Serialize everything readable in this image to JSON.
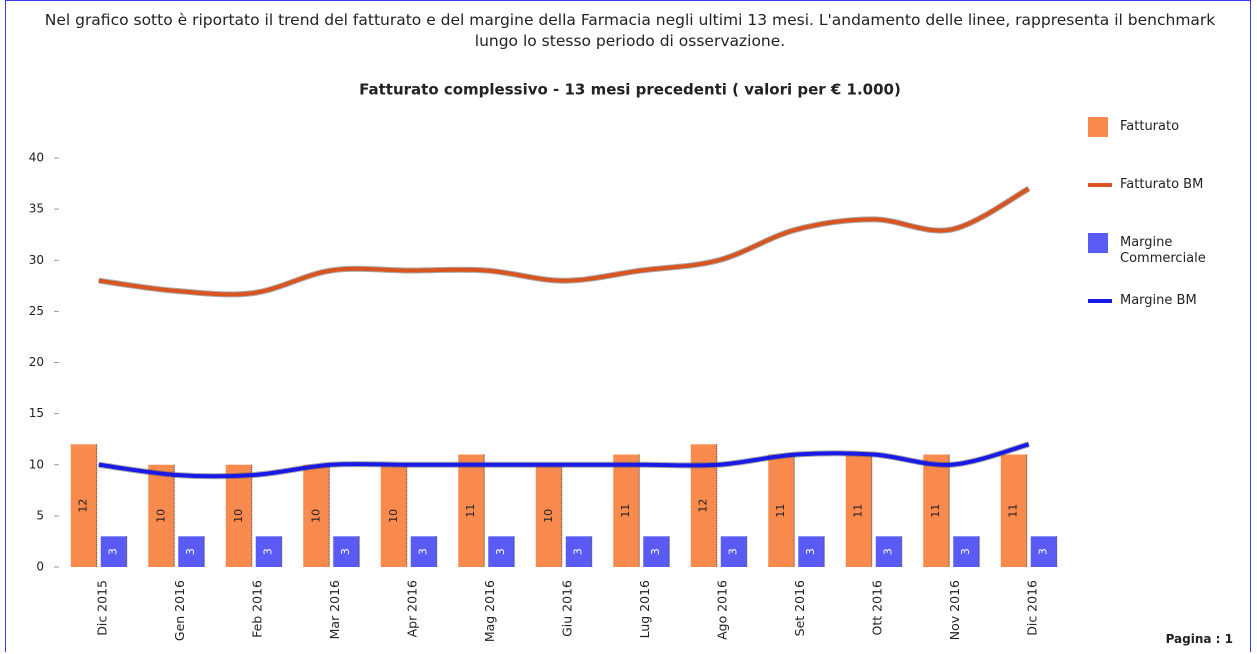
{
  "intro": "Nel grafico sotto è riportato il trend del fatturato e del margine della Farmacia negli ultimi 13 mesi. L'andamento delle linee, rappresenta il benchmark lungo lo stesso periodo di osservazione.",
  "footer": "Pagina : 1",
  "chart_data": {
    "type": "bar",
    "title": "Fatturato complessivo - 13 mesi precedenti ( valori per € 1.000)",
    "categories": [
      "Dic 2015",
      "Gen 2016",
      "Feb 2016",
      "Mar 2016",
      "Apr 2016",
      "Mag 2016",
      "Giu 2016",
      "Lug 2016",
      "Ago 2016",
      "Set 2016",
      "Ott 2016",
      "Nov 2016",
      "Dic 2016"
    ],
    "series": [
      {
        "name": "Fatturato",
        "type": "bar",
        "color": "#f98a4d",
        "values": [
          12,
          10,
          10,
          10,
          10,
          11,
          10,
          11,
          12,
          11,
          11,
          11,
          11
        ]
      },
      {
        "name": "Fatturato BM",
        "type": "line",
        "color": "#d9541e",
        "values": [
          28,
          27,
          26.8,
          29,
          29,
          29,
          28,
          29,
          30,
          33,
          34,
          33,
          37
        ]
      },
      {
        "name": "Margine Commerciale",
        "type": "bar",
        "color": "#5a5af5",
        "values": [
          3,
          3,
          3,
          3,
          3,
          3,
          3,
          3,
          3,
          3,
          3,
          3,
          3
        ]
      },
      {
        "name": "Margine BM",
        "type": "line",
        "color": "#1a1ae6",
        "values": [
          10,
          9,
          9,
          10,
          10,
          10,
          10,
          10,
          10,
          11,
          11,
          10,
          12
        ]
      }
    ],
    "ylim": [
      0,
      40
    ],
    "yticks": [
      0,
      5,
      10,
      15,
      20,
      25,
      30,
      35,
      40
    ],
    "legend": "right"
  }
}
